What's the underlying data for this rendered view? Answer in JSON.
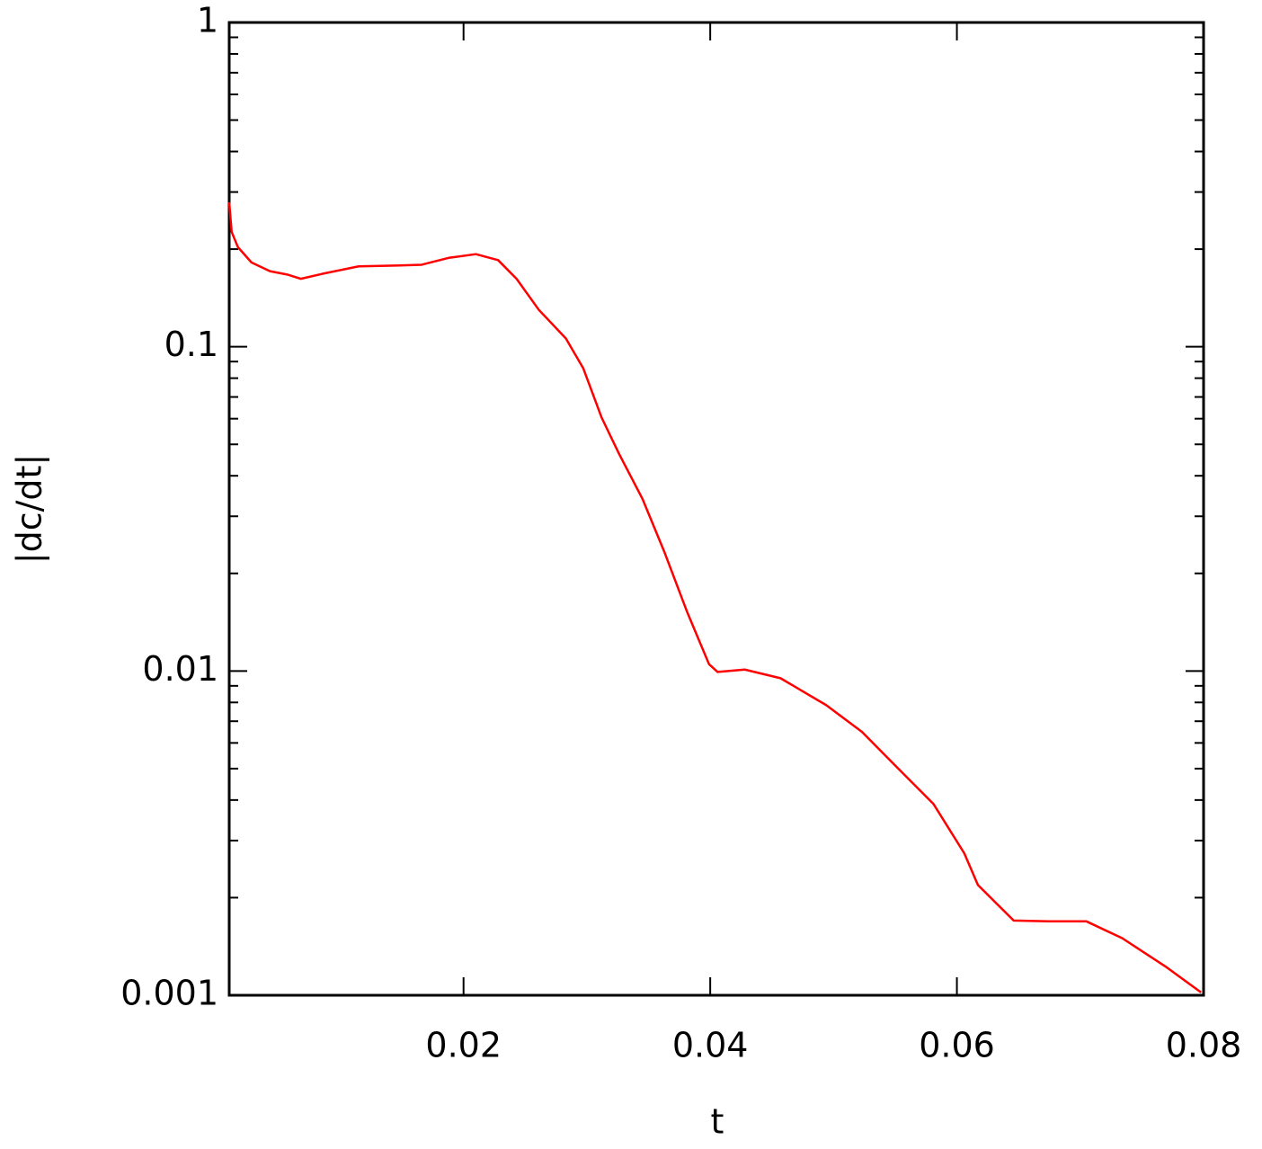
{
  "chart_data": {
    "type": "line",
    "xlabel": "t",
    "ylabel": "|dc/dt|",
    "x": [
      0.001,
      0.0012,
      0.0017,
      0.0028,
      0.0043,
      0.0057,
      0.0068,
      0.0086,
      0.0115,
      0.0145,
      0.0166,
      0.0188,
      0.021,
      0.0228,
      0.0243,
      0.0261,
      0.0283,
      0.0297,
      0.0312,
      0.0326,
      0.0345,
      0.0363,
      0.0381,
      0.0399,
      0.0406,
      0.0428,
      0.0457,
      0.0494,
      0.0523,
      0.0552,
      0.0581,
      0.0606,
      0.0617,
      0.0646,
      0.0675,
      0.0705,
      0.0734,
      0.077,
      0.0798
    ],
    "series": [
      {
        "color": "#ff0000",
        "values": [
          0.279,
          0.226,
          0.203,
          0.182,
          0.171,
          0.167,
          0.162,
          0.168,
          0.177,
          0.178,
          0.179,
          0.188,
          0.193,
          0.185,
          0.162,
          0.13,
          0.106,
          0.0859,
          0.0604,
          0.0468,
          0.034,
          0.0232,
          0.0153,
          0.0105,
          0.00993,
          0.0101,
          0.0095,
          0.00785,
          0.00649,
          0.00502,
          0.00389,
          0.00274,
          0.00219,
          0.0017,
          0.00169,
          0.00169,
          0.0015,
          0.00122,
          0.00102
        ]
      }
    ],
    "xlim": [
      0.001,
      0.08
    ],
    "xticks": [
      0.02,
      0.04,
      0.06,
      0.08
    ],
    "ylim": [
      0.001,
      1
    ],
    "yticks": [
      0.001,
      0.01,
      0.1,
      1
    ],
    "ylog": true,
    "yminorticks": [
      0.002,
      0.003,
      0.004,
      0.005,
      0.006,
      0.007,
      0.008,
      0.009,
      0.02,
      0.03,
      0.04,
      0.05,
      0.06,
      0.07,
      0.08,
      0.09,
      0.2,
      0.3,
      0.4,
      0.5,
      0.6,
      0.7,
      0.8,
      0.9
    ],
    "grid": false
  }
}
